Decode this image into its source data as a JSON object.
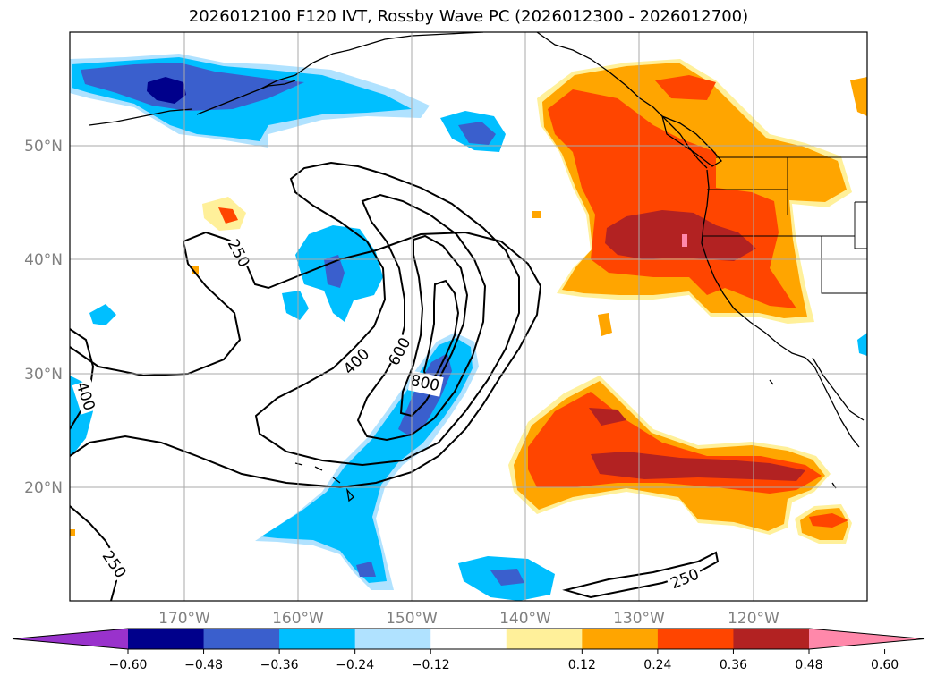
{
  "title": "2026012100 F120 IVT, Rossby Wave PC (2026012300 - 2026012700)",
  "lat_labels": [
    "50°N",
    "40°N",
    "30°N",
    "20°N"
  ],
  "lon_labels": [
    "170°W",
    "160°W",
    "150°W",
    "140°W",
    "130°W",
    "120°W"
  ],
  "contour_labels": [
    "250",
    "400",
    "600",
    "800",
    "400",
    "250",
    "250"
  ],
  "colorbar": {
    "ticks": [
      "−0.60",
      "−0.48",
      "−0.36",
      "−0.24",
      "−0.12",
      "0.12",
      "0.24",
      "0.36",
      "0.48",
      "0.60"
    ],
    "colors": [
      "#9932cc",
      "#00008b",
      "#3a5fcd",
      "#00bfff",
      "#b0e2ff",
      "#ffffff",
      "#fff09a",
      "#ffa500",
      "#ff4500",
      "#b22222",
      "#ff88aa"
    ]
  },
  "colors": {
    "neg_deep": "#00008b",
    "neg_mid": "#3a5fcd",
    "neg_light": "#00bfff",
    "neg_pale": "#b0e2ff",
    "pos_pale": "#fff09a",
    "pos_light": "#ffa500",
    "pos_mid": "#ff4500",
    "pos_deep": "#b22222",
    "pos_max": "#ff88aa"
  }
}
